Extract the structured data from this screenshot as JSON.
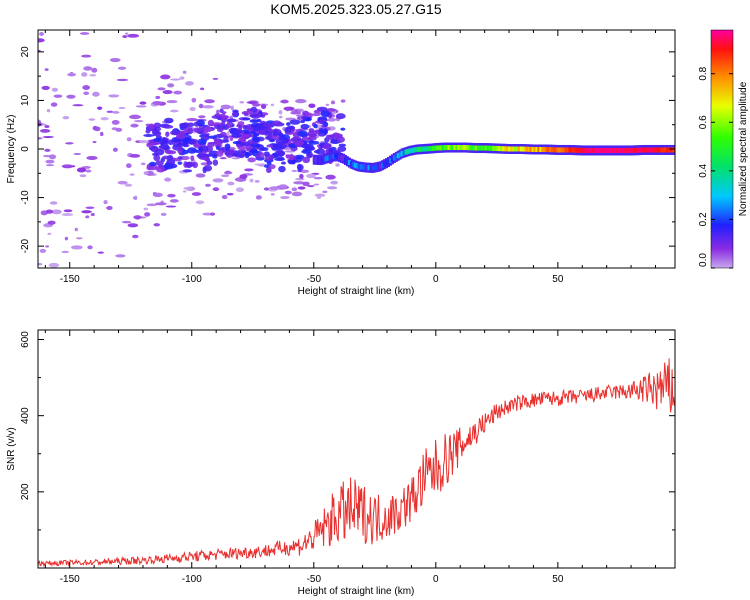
{
  "title": "KOM5.2025.323.05.27.G15",
  "colorbar": {
    "label": "Normalized spectral amplitude",
    "range": [
      0.0,
      0.98
    ],
    "ticks": [
      0.0,
      0.2,
      0.4,
      0.6,
      0.8
    ],
    "tick_labels": [
      "0.0",
      "0.2",
      "0.4",
      "0.6",
      "0.8"
    ]
  },
  "chart_data": [
    {
      "type": "heatmap",
      "title": "KOM5.2025.323.05.27.G15",
      "xlabel": "Height of straight line (km)",
      "ylabel": "Frequency (Hz)",
      "xlim": [
        -163,
        98
      ],
      "ylim": [
        -24.5,
        24.5
      ],
      "x_ticks": [
        -150,
        -100,
        -50,
        0,
        50
      ],
      "x_tick_labels": [
        "-150",
        "-100",
        "-50",
        "0",
        "50"
      ],
      "y_ticks": [
        -20,
        -10,
        0,
        10,
        20
      ],
      "y_tick_labels": [
        "-20",
        "-10",
        "0",
        "10",
        "20"
      ],
      "trace": {
        "description": "dominant spectral line (frequency vs height) with normalized amplitude",
        "x": [
          -50,
          -47,
          -44,
          -41,
          -38,
          -35,
          -32,
          -29,
          -26,
          -23,
          -20,
          -17,
          -14,
          -11,
          -8,
          -5,
          -2,
          0,
          4,
          8,
          12,
          16,
          20,
          25,
          30,
          35,
          40,
          45,
          50,
          55,
          60,
          65,
          70,
          75,
          80,
          85,
          90,
          95
        ],
        "y": [
          -2.2,
          -2.3,
          -1.8,
          -1.4,
          -2.0,
          -3.0,
          -3.6,
          -3.8,
          -3.9,
          -3.6,
          -2.8,
          -1.8,
          -0.9,
          -0.4,
          -0.1,
          0.0,
          0.1,
          0.2,
          0.3,
          0.3,
          0.3,
          0.2,
          0.2,
          0.1,
          0.0,
          0.0,
          -0.1,
          -0.1,
          -0.2,
          -0.2,
          -0.3,
          -0.3,
          -0.3,
          -0.3,
          -0.3,
          -0.2,
          -0.2,
          -0.2
        ],
        "amp": [
          0.15,
          0.16,
          0.17,
          0.16,
          0.18,
          0.2,
          0.22,
          0.22,
          0.2,
          0.18,
          0.2,
          0.24,
          0.3,
          0.36,
          0.4,
          0.42,
          0.46,
          0.5,
          0.55,
          0.6,
          0.62,
          0.58,
          0.56,
          0.6,
          0.68,
          0.72,
          0.74,
          0.78,
          0.8,
          0.9,
          0.95,
          0.97,
          0.98,
          0.97,
          0.96,
          0.95,
          0.93,
          0.9
        ]
      }
    },
    {
      "type": "line",
      "title": "",
      "xlabel": "Height of straight line (km)",
      "ylabel": "SNR (v/v)",
      "xlim": [
        -163,
        98
      ],
      "ylim": [
        0,
        625
      ],
      "x_ticks": [
        -150,
        -100,
        -50,
        0,
        50
      ],
      "x_tick_labels": [
        "-150",
        "-100",
        "-50",
        "0",
        "50"
      ],
      "y_ticks": [
        200,
        400,
        600
      ],
      "y_tick_labels": [
        "200",
        "400",
        "600"
      ],
      "series": [
        {
          "name": "SNR",
          "color": "#e8302e",
          "x": [
            -163,
            -140,
            -120,
            -100,
            -80,
            -70,
            -60,
            -55,
            -50,
            -45,
            -40,
            -35,
            -30,
            -25,
            -20,
            -15,
            -10,
            -5,
            0,
            5,
            10,
            15,
            20,
            25,
            30,
            35,
            40,
            45,
            50,
            55,
            60,
            65,
            70,
            75,
            80,
            85,
            90,
            95,
            98
          ],
          "y": [
            12,
            15,
            20,
            30,
            40,
            45,
            55,
            60,
            80,
            110,
            140,
            150,
            145,
            130,
            135,
            150,
            180,
            230,
            260,
            290,
            320,
            350,
            380,
            410,
            425,
            435,
            440,
            445,
            445,
            448,
            450,
            455,
            460,
            462,
            465,
            468,
            470,
            470,
            470
          ],
          "spread": [
            6,
            8,
            10,
            14,
            16,
            18,
            22,
            28,
            40,
            60,
            80,
            90,
            80,
            70,
            60,
            60,
            60,
            80,
            80,
            70,
            50,
            40,
            30,
            25,
            20,
            20,
            20,
            20,
            20,
            20,
            20,
            20,
            20,
            20,
            25,
            35,
            60,
            80,
            90
          ]
        }
      ]
    }
  ]
}
